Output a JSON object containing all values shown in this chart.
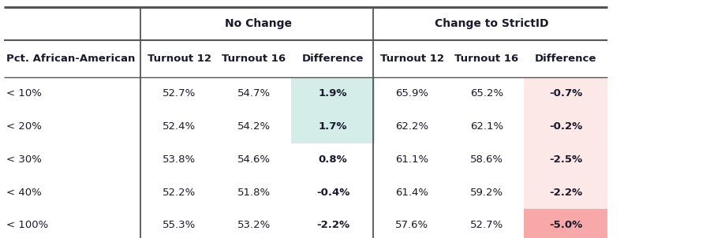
{
  "group_headers": [
    {
      "text": "No Change",
      "cols": [
        1,
        2,
        3
      ]
    },
    {
      "text": "Change to StrictID",
      "cols": [
        4,
        5,
        6
      ]
    }
  ],
  "col_headers": [
    "Pct. African-American",
    "Turnout 12",
    "Turnout 16",
    "Difference",
    "Turnout 12",
    "Turnout 16",
    "Difference"
  ],
  "rows": [
    [
      "< 10%",
      "52.7%",
      "54.7%",
      "1.9%",
      "65.9%",
      "65.2%",
      "-0.7%"
    ],
    [
      "< 20%",
      "52.4%",
      "54.2%",
      "1.7%",
      "62.2%",
      "62.1%",
      "-0.2%"
    ],
    [
      "< 30%",
      "53.8%",
      "54.6%",
      "0.8%",
      "61.1%",
      "58.6%",
      "-2.5%"
    ],
    [
      "< 40%",
      "52.2%",
      "51.8%",
      "-0.4%",
      "61.4%",
      "59.2%",
      "-2.2%"
    ],
    [
      "< 100%",
      "55.3%",
      "53.2%",
      "-2.2%",
      "57.6%",
      "52.7%",
      "-5.0%"
    ]
  ],
  "cell_bg": [
    [
      null,
      null,
      null,
      "#d4ede9",
      null,
      null,
      "#fde8e8"
    ],
    [
      null,
      null,
      null,
      "#d4ede9",
      null,
      null,
      "#fde8e8"
    ],
    [
      null,
      null,
      null,
      null,
      null,
      null,
      "#fde8e8"
    ],
    [
      null,
      null,
      null,
      null,
      null,
      null,
      "#fde8e8"
    ],
    [
      null,
      null,
      null,
      null,
      null,
      null,
      "#f8a8a8"
    ]
  ],
  "table_bg": "#ffffff",
  "border_color": "#555555",
  "text_color": "#1a1a2e",
  "font_size": 9.5,
  "header_font_size": 9.5,
  "group_header_font_size": 10
}
